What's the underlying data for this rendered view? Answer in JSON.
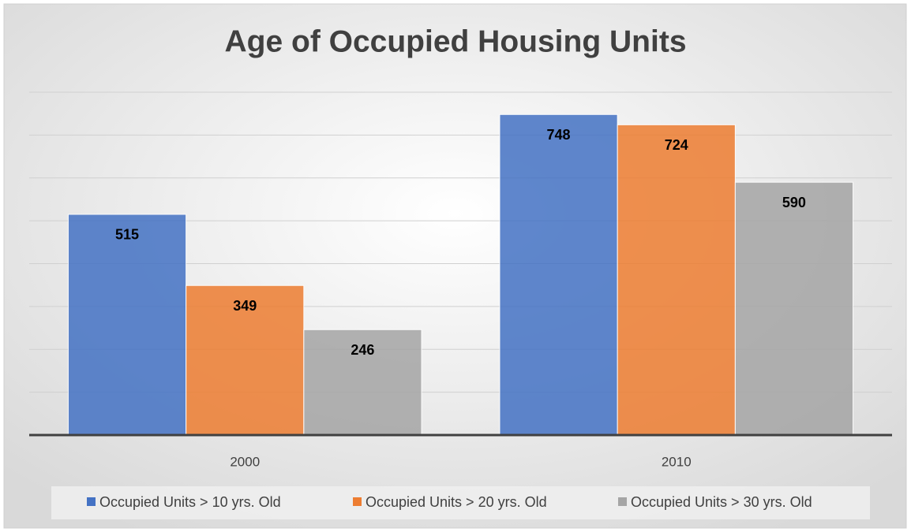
{
  "chart_data": {
    "type": "bar",
    "title": "Age of Occupied Housing Units",
    "categories": [
      "2000",
      "2010"
    ],
    "series": [
      {
        "name": "Occupied Units > 10 yrs. Old",
        "color": "#4472c4",
        "values": [
          515,
          748
        ]
      },
      {
        "name": "Occupied Units > 20 yrs. Old",
        "color": "#ed7d31",
        "values": [
          349,
          724
        ]
      },
      {
        "name": "Occupied Units > 30 yrs. Old",
        "color": "#a5a5a5",
        "values": [
          246,
          590
        ]
      }
    ],
    "ylim": [
      0,
      800
    ],
    "yticks": [
      0,
      100,
      200,
      300,
      400,
      500,
      600,
      700,
      800
    ],
    "grid": true,
    "legend": "bottom"
  }
}
